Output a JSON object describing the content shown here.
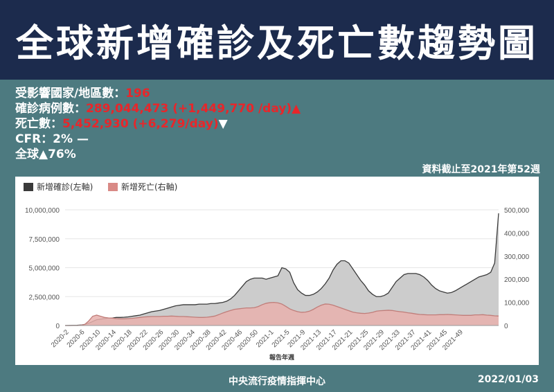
{
  "title": "全球新增確診及死亡數趨勢圖",
  "stats": [
    {
      "label": "受影響國家/地區數：",
      "value": "196",
      "suffix": ""
    },
    {
      "label": "確診病例數：",
      "value": "289,044,473 (+1,449,770 /day)",
      "suffix": "▲",
      "suffix_color": "#e8262a"
    },
    {
      "label": "死亡數：",
      "value": "5,452,930 (+6,279/day)",
      "suffix": "▼",
      "suffix_color": "#ffffff"
    },
    {
      "label": "CFR：2% —",
      "value": "",
      "suffix": ""
    },
    {
      "label": "全球▲76%",
      "value": "",
      "suffix": ""
    }
  ],
  "cutoff_note": "資料截止至2021年第52週",
  "footer": {
    "source": "中央流行疫情指揮中心",
    "date": "2022/01/03"
  },
  "colors": {
    "header_bg": "#1c2b4d",
    "page_bg": "#4d7a80",
    "highlight": "#e8262a",
    "cases_fill": "#cccccc",
    "cases_line": "#3a3a3a",
    "deaths_fill": "#e8b0ad",
    "deaths_line": "#c07d79"
  },
  "chart_data": {
    "type": "area",
    "xlabel": "報告年週",
    "legend_position": "top-left",
    "left_axis": {
      "ylim": [
        0,
        10000000
      ],
      "ticks": [
        "0",
        "2,500,000",
        "5,000,000",
        "7,500,000",
        "10,000,000"
      ]
    },
    "right_axis": {
      "ylim": [
        0,
        500000
      ],
      "ticks": [
        "0",
        "100,000",
        "200,000",
        "300,000",
        "400,000",
        "500,000"
      ]
    },
    "x_tick_labels": [
      "2020-2",
      "2020-6",
      "2020-10",
      "2020-14",
      "2020-18",
      "2020-22",
      "2020-26",
      "2020-30",
      "2020-34",
      "2020-38",
      "2020-42",
      "2020-46",
      "2020-50",
      "2021-1",
      "2021-5",
      "2021-9",
      "2021-13",
      "2021-17",
      "2021-21",
      "2021-25",
      "2021-29",
      "2021-33",
      "2021-37",
      "2021-41",
      "2021-45",
      "2021-49"
    ],
    "series": [
      {
        "name": "新增確診(左軸)",
        "axis": "left",
        "values": [
          0,
          5000,
          10000,
          20000,
          40000,
          100000,
          200000,
          350000,
          500000,
          550000,
          600000,
          650000,
          650000,
          700000,
          700000,
          720000,
          750000,
          800000,
          850000,
          900000,
          1000000,
          1100000,
          1200000,
          1250000,
          1300000,
          1400000,
          1500000,
          1600000,
          1700000,
          1750000,
          1800000,
          1800000,
          1800000,
          1800000,
          1850000,
          1850000,
          1850000,
          1900000,
          1900000,
          1950000,
          2000000,
          2100000,
          2300000,
          2600000,
          3000000,
          3400000,
          3800000,
          4000000,
          4100000,
          4100000,
          4100000,
          4000000,
          4100000,
          4200000,
          4300000,
          5000000,
          4900000,
          4600000,
          3700000,
          3100000,
          2800000,
          2600000,
          2600000,
          2700000,
          2900000,
          3200000,
          3600000,
          4100000,
          4800000,
          5300000,
          5600000,
          5600000,
          5400000,
          4900000,
          4400000,
          3900000,
          3500000,
          3000000,
          2700000,
          2500000,
          2500000,
          2600000,
          2800000,
          3300000,
          3800000,
          4100000,
          4400000,
          4500000,
          4500000,
          4500000,
          4400000,
          4200000,
          3900000,
          3500000,
          3200000,
          3000000,
          2900000,
          2800000,
          2850000,
          3000000,
          3200000,
          3400000,
          3600000,
          3800000,
          4000000,
          4200000,
          4300000,
          4400000,
          4600000,
          5400000,
          9700000
        ]
      },
      {
        "name": "新增死亡(右軸)",
        "axis": "right",
        "values": [
          0,
          0,
          0,
          0,
          1000,
          5000,
          20000,
          40000,
          45000,
          40000,
          35000,
          33000,
          32000,
          30000,
          29000,
          29000,
          30000,
          31000,
          33000,
          35000,
          37000,
          38000,
          39000,
          39000,
          39000,
          40000,
          40000,
          41000,
          40000,
          39000,
          39000,
          38000,
          37000,
          36000,
          35000,
          35000,
          36000,
          38000,
          41000,
          47000,
          54000,
          60000,
          65000,
          70000,
          72000,
          74000,
          76000,
          76000,
          77000,
          82000,
          90000,
          96000,
          99000,
          100000,
          98000,
          93000,
          83000,
          72000,
          65000,
          60000,
          57000,
          58000,
          62000,
          70000,
          80000,
          88000,
          93000,
          92000,
          88000,
          82000,
          76000,
          70000,
          64000,
          58000,
          55000,
          53000,
          52000,
          54000,
          57000,
          62000,
          64000,
          65000,
          66000,
          65000,
          62000,
          60000,
          58000,
          55000,
          53000,
          50000,
          48000,
          47000,
          46000,
          46000,
          46000,
          47000,
          47000,
          48000,
          47000,
          46000,
          45000,
          44000,
          44000,
          44000,
          46000,
          46000,
          47000,
          45000,
          44000,
          42000,
          41000
        ]
      }
    ]
  }
}
